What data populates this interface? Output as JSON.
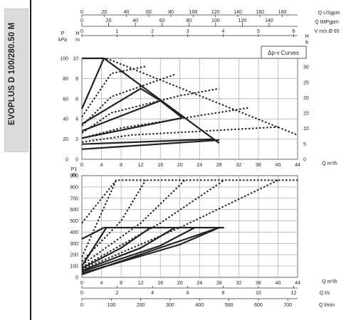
{
  "model": "EVOPLUS D 100/280.50 M",
  "chart_data": [
    {
      "type": "line",
      "title": "",
      "legend": "Δp-v Curves",
      "x": {
        "label": "Q m³/h",
        "range": [
          0,
          44
        ],
        "ticks": [
          0,
          4,
          8,
          12,
          16,
          20,
          24,
          28,
          32,
          36,
          40,
          44
        ]
      },
      "y": {
        "label": "H m",
        "range": [
          0,
          10
        ],
        "ticks": [
          0,
          2,
          4,
          6,
          8,
          10
        ],
        "ticks_label_positions": [
          0,
          2,
          4,
          6,
          8,
          10
        ]
      },
      "y_left_pa": {
        "label": "P kPa",
        "ticks": [
          0,
          20,
          40,
          60,
          80,
          100
        ]
      },
      "y_right_ft": {
        "label": "H ft",
        "ticks": [
          0,
          5,
          10,
          15,
          20,
          25,
          30
        ]
      },
      "top_axes": [
        {
          "label": "Q USgpm",
          "ticks": [
            0,
            20,
            40,
            60,
            80,
            100,
            120,
            140,
            160,
            180
          ]
        },
        {
          "label": "Q IMPgpm",
          "ticks": [
            0,
            20,
            40,
            60,
            80,
            100,
            120,
            140
          ]
        },
        {
          "label": "V m/s Ø 65",
          "ticks": [
            0,
            1,
            2,
            3,
            4,
            5,
            6
          ]
        }
      ],
      "solid_curves": [
        {
          "points": [
            [
              0,
              10
            ],
            [
              4.5,
              10
            ],
            [
              28,
              1.6
            ]
          ]
        },
        {
          "points": [
            [
              0,
              5
            ],
            [
              4.5,
              10
            ]
          ]
        },
        {
          "points": [
            [
              0,
              3.5
            ],
            [
              12,
              7
            ],
            [
              16,
              5.8
            ]
          ]
        },
        {
          "points": [
            [
              0,
              2.8
            ],
            [
              16,
              5.8
            ],
            [
              20.5,
              4.1
            ]
          ]
        },
        {
          "points": [
            [
              0,
              2.1
            ],
            [
              20.5,
              4.1
            ]
          ]
        },
        {
          "points": [
            [
              0,
              1.5
            ],
            [
              27,
              2
            ]
          ]
        },
        {
          "points": [
            [
              0,
              1
            ],
            [
              28,
              1.9
            ]
          ]
        }
      ],
      "dotted_curves": [
        {
          "points": [
            [
              5,
              10
            ],
            [
              44,
              2.4
            ]
          ]
        },
        {
          "points": [
            [
              0,
              4.2
            ],
            [
              6,
              8.5
            ],
            [
              13,
              9.2
            ]
          ]
        },
        {
          "points": [
            [
              0,
              3.3
            ],
            [
              6,
              6.2
            ],
            [
              19,
              8.4
            ]
          ]
        },
        {
          "points": [
            [
              0,
              2.6
            ],
            [
              6,
              4.6
            ],
            [
              20,
              6.3
            ],
            [
              28,
              7
            ]
          ]
        },
        {
          "points": [
            [
              0,
              2.1
            ],
            [
              8,
              3.1
            ],
            [
              34,
              5.1
            ]
          ]
        },
        {
          "points": [
            [
              0,
              1.7
            ],
            [
              10,
              2.4
            ],
            [
              40,
              3.2
            ]
          ]
        }
      ]
    },
    {
      "type": "line",
      "title": "",
      "x": {
        "label": "Q m³/h",
        "range": [
          0,
          44
        ],
        "ticks": [
          0,
          4,
          8,
          12,
          16,
          20,
          24,
          28,
          32,
          36,
          40,
          44
        ]
      },
      "y": {
        "label": "P1 W",
        "range": [
          0,
          900
        ],
        "ticks": [
          0,
          100,
          200,
          300,
          400,
          500,
          600,
          700,
          800,
          900
        ]
      },
      "bottom_axes": [
        {
          "label": "Q l/s",
          "ticks": [
            0,
            2,
            4,
            6,
            8,
            10,
            12
          ]
        },
        {
          "label": "Q l/min",
          "ticks": [
            0,
            100,
            200,
            300,
            400,
            500,
            600,
            700
          ]
        }
      ],
      "solid_curves": [
        {
          "points": [
            [
              0,
              340
            ],
            [
              4.5,
              440
            ],
            [
              29,
              440
            ]
          ]
        },
        {
          "points": [
            [
              0,
              100
            ],
            [
              5,
              440
            ]
          ]
        },
        {
          "points": [
            [
              0,
              80
            ],
            [
              8,
              260
            ],
            [
              14,
              440
            ]
          ]
        },
        {
          "points": [
            [
              0,
              60
            ],
            [
              12,
              260
            ],
            [
              19,
              440
            ]
          ]
        },
        {
          "points": [
            [
              0,
              50
            ],
            [
              16,
              280
            ],
            [
              23,
              440
            ]
          ]
        },
        {
          "points": [
            [
              0,
              35
            ],
            [
              20,
              290
            ],
            [
              28,
              440
            ]
          ]
        },
        {
          "points": [
            [
              0,
              25
            ],
            [
              28,
              440
            ]
          ]
        }
      ],
      "dotted_curves": [
        {
          "points": [
            [
              0,
              480
            ],
            [
              7,
              860
            ],
            [
              44,
              860
            ]
          ]
        },
        {
          "points": [
            [
              0,
              180
            ],
            [
              7,
              860
            ]
          ]
        },
        {
          "points": [
            [
              0,
              140
            ],
            [
              8,
              500
            ],
            [
              13,
              860
            ]
          ]
        },
        {
          "points": [
            [
              0,
              110
            ],
            [
              12,
              480
            ],
            [
              21,
              860
            ]
          ]
        },
        {
          "points": [
            [
              0,
              90
            ],
            [
              16,
              480
            ],
            [
              29,
              860
            ]
          ]
        },
        {
          "points": [
            [
              0,
              70
            ],
            [
              20,
              440
            ],
            [
              40,
              860
            ]
          ]
        }
      ]
    }
  ]
}
